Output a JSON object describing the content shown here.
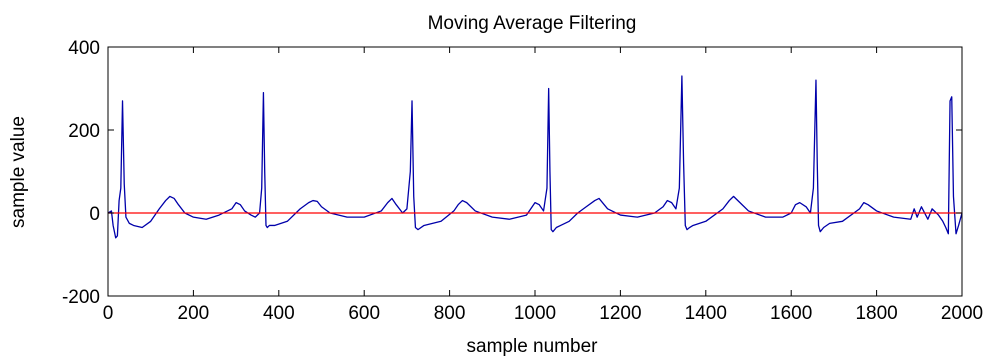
{
  "chart_data": {
    "type": "line",
    "title": "Moving Average Filtering",
    "xlabel": "sample number",
    "ylabel": "sample value",
    "xlim": [
      0,
      2000
    ],
    "ylim": [
      -200,
      400
    ],
    "x_ticks": [
      "0",
      "200",
      "400",
      "600",
      "800",
      "1000",
      "1200",
      "1400",
      "1600",
      "1800",
      "2000"
    ],
    "y_ticks": [
      "-200",
      "0",
      "200",
      "400"
    ],
    "grid": false,
    "series": [
      {
        "color": "#0000aa",
        "x": [
          0,
          8,
          12,
          18,
          22,
          26,
          30,
          34,
          38,
          42,
          50,
          60,
          80,
          100,
          120,
          135,
          145,
          155,
          165,
          180,
          200,
          230,
          260,
          290,
          300,
          310,
          320,
          335,
          345,
          355,
          360,
          364,
          367,
          370,
          373,
          378,
          390,
          420,
          450,
          470,
          480,
          490,
          500,
          520,
          560,
          600,
          640,
          655,
          665,
          675,
          690,
          700,
          708,
          712,
          716,
          720,
          726,
          740,
          780,
          810,
          820,
          830,
          840,
          860,
          900,
          940,
          980,
          990,
          1000,
          1010,
          1020,
          1028,
          1032,
          1035,
          1038,
          1042,
          1050,
          1060,
          1080,
          1100,
          1120,
          1140,
          1150,
          1170,
          1200,
          1240,
          1280,
          1300,
          1310,
          1320,
          1330,
          1338,
          1344,
          1348,
          1352,
          1356,
          1362,
          1370,
          1400,
          1440,
          1455,
          1465,
          1480,
          1500,
          1540,
          1580,
          1600,
          1610,
          1620,
          1635,
          1645,
          1652,
          1658,
          1661,
          1664,
          1668,
          1676,
          1690,
          1720,
          1760,
          1770,
          1780,
          1800,
          1840,
          1880,
          1888,
          1895,
          1905,
          1920,
          1930,
          1945,
          1955,
          1962,
          1968,
          1972,
          1976,
          1980,
          1986,
          1992,
          2000
        ],
        "y": [
          0,
          5,
          -30,
          -60,
          -55,
          30,
          60,
          270,
          70,
          -10,
          -25,
          -30,
          -35,
          -20,
          10,
          30,
          40,
          35,
          20,
          0,
          -10,
          -15,
          -5,
          10,
          25,
          20,
          5,
          -5,
          -10,
          0,
          60,
          290,
          100,
          -30,
          -35,
          -30,
          -30,
          -20,
          10,
          25,
          30,
          28,
          15,
          0,
          -10,
          -10,
          5,
          25,
          35,
          20,
          0,
          10,
          100,
          270,
          40,
          -35,
          -40,
          -30,
          -20,
          5,
          20,
          30,
          25,
          5,
          -10,
          -15,
          -5,
          10,
          25,
          20,
          5,
          60,
          300,
          100,
          -40,
          -45,
          -35,
          -30,
          -20,
          0,
          15,
          30,
          35,
          10,
          -5,
          -10,
          0,
          15,
          30,
          25,
          10,
          60,
          330,
          120,
          -30,
          -40,
          -35,
          -30,
          -20,
          10,
          30,
          40,
          25,
          5,
          -10,
          -10,
          0,
          20,
          25,
          15,
          0,
          60,
          320,
          120,
          -30,
          -45,
          -35,
          -25,
          -20,
          10,
          25,
          20,
          5,
          -10,
          -15,
          10,
          -10,
          15,
          -15,
          10,
          -5,
          -20,
          -35,
          -50,
          270,
          280,
          40,
          -50,
          -30,
          0
        ]
      },
      {
        "color": "#ff0000",
        "x": [
          0,
          2000
        ],
        "y": [
          0,
          0
        ]
      }
    ]
  }
}
